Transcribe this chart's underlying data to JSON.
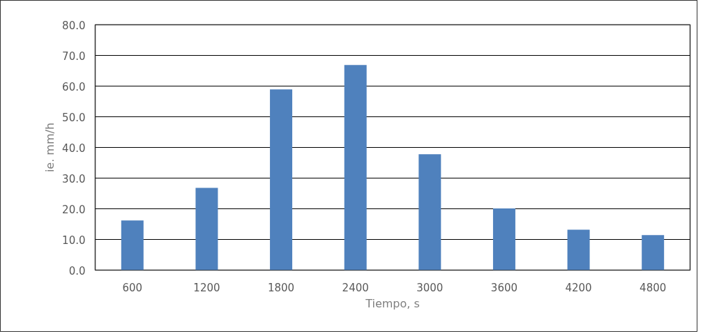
{
  "chart_data": {
    "type": "bar",
    "xlabel": "Tiempo, s",
    "ylabel": "ie. mm/h",
    "categories": [
      "600",
      "1200",
      "1800",
      "2400",
      "3000",
      "3600",
      "4200",
      "4800"
    ],
    "values": [
      16.2,
      26.8,
      58.9,
      66.9,
      37.8,
      20.1,
      13.2,
      11.4
    ],
    "color": "#4f81bd",
    "ylim": [
      0,
      80
    ],
    "yticks": [
      {
        "value": 0,
        "label": "0.0"
      },
      {
        "value": 10,
        "label": "10.0"
      },
      {
        "value": 20,
        "label": "20.0"
      },
      {
        "value": 30,
        "label": "30.0"
      },
      {
        "value": 40,
        "label": "40.0"
      },
      {
        "value": 50,
        "label": "50.0"
      },
      {
        "value": 60,
        "label": "60.0"
      },
      {
        "value": 70,
        "label": "70.0"
      },
      {
        "value": 80,
        "label": "80.0"
      }
    ],
    "grid": "y"
  }
}
